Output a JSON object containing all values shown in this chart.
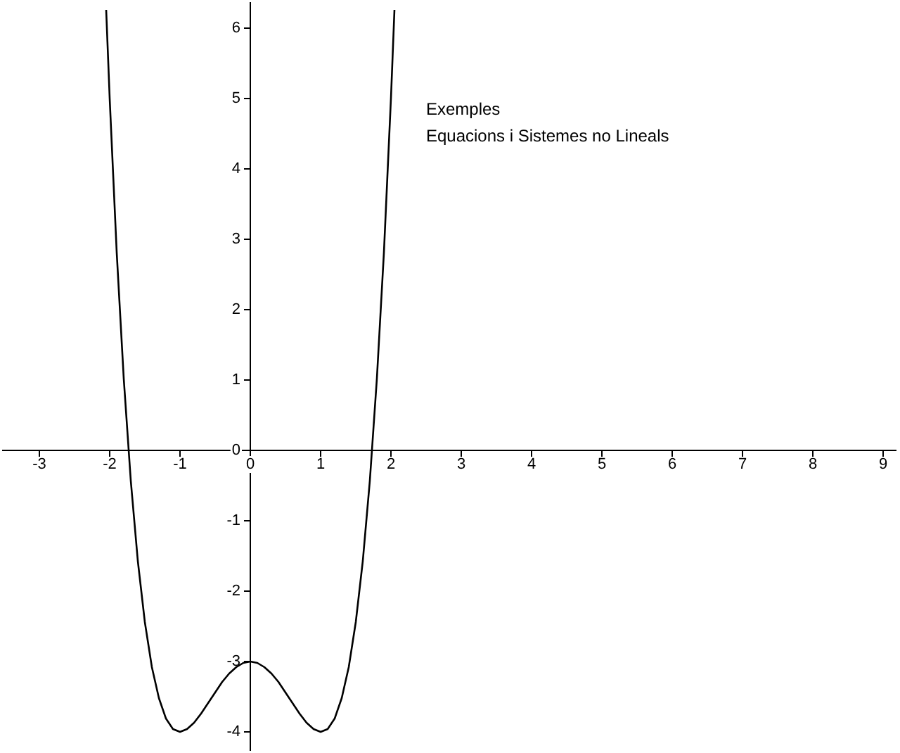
{
  "chart_data": {
    "type": "line",
    "title": "Exemples",
    "subtitle": "Equacions i Sistemes no Lineals",
    "x": [
      -2.05,
      -2,
      -1.9,
      -1.8,
      -1.7,
      -1.6,
      -1.5,
      -1.4,
      -1.3,
      -1.2,
      -1.1,
      -1,
      -0.9,
      -0.8,
      -0.7,
      -0.6,
      -0.5,
      -0.4,
      -0.3,
      -0.2,
      -0.1,
      0,
      0.1,
      0.2,
      0.3,
      0.4,
      0.5,
      0.6,
      0.7,
      0.8,
      0.9,
      1,
      1.1,
      1.2,
      1.3,
      1.4,
      1.5,
      1.6,
      1.7,
      1.8,
      1.9,
      2,
      2.05
    ],
    "values": [
      6.26,
      5,
      2.81,
      1.02,
      -0.43,
      -1.57,
      -2.44,
      -3.08,
      -3.52,
      -3.81,
      -3.96,
      -4,
      -3.96,
      -3.87,
      -3.74,
      -3.59,
      -3.44,
      -3.29,
      -3.17,
      -3.08,
      -3.02,
      -3,
      -3.02,
      -3.08,
      -3.17,
      -3.29,
      -3.44,
      -3.59,
      -3.74,
      -3.87,
      -3.96,
      -4,
      -3.96,
      -3.81,
      -3.52,
      -3.08,
      -2.44,
      -1.57,
      -0.43,
      1.02,
      2.81,
      5,
      6.26
    ],
    "color": "#000000",
    "marker": "none",
    "line_style": "solid",
    "xlim": [
      -3.52,
      9.18
    ],
    "ylim": [
      -4.26,
      6.36
    ],
    "xticks": [
      -3,
      -2,
      -1,
      0,
      1,
      2,
      3,
      4,
      5,
      6,
      7,
      8,
      9
    ],
    "yticks": [
      -4,
      -3,
      -2,
      -1,
      0,
      1,
      2,
      3,
      4,
      5,
      6
    ]
  }
}
